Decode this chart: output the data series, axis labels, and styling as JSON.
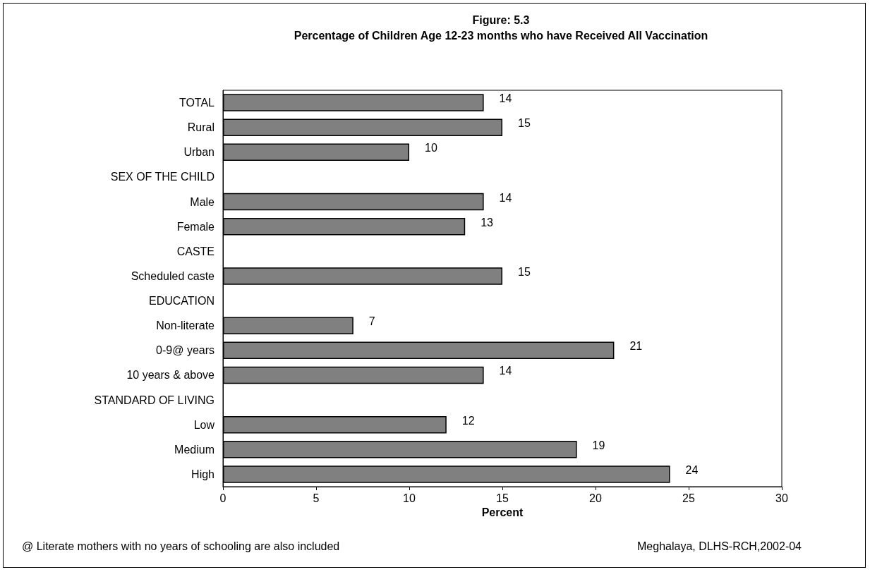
{
  "chart_data": {
    "type": "bar",
    "orientation": "horizontal",
    "title": "Figure: 5.3",
    "subtitle": "Percentage of Children Age 12-23 months who have Received All Vaccination",
    "categories": [
      "TOTAL",
      "Rural",
      "Urban",
      "SEX OF THE CHILD",
      "Male",
      "Female",
      "CASTE",
      "Scheduled caste",
      "EDUCATION",
      "Non-literate",
      "0-9@ years",
      "10 years & above",
      "STANDARD OF LIVING",
      "Low",
      "Medium",
      "High"
    ],
    "values": [
      14,
      15,
      10,
      null,
      14,
      13,
      null,
      15,
      null,
      7,
      21,
      14,
      null,
      12,
      19,
      24
    ],
    "color": "#808080",
    "xlim": [
      0,
      30
    ],
    "xticks": [
      0,
      5,
      10,
      15,
      20,
      25,
      30
    ],
    "xlabel": "Percent",
    "data_labels": true,
    "annotations": [
      "@ Literate mothers with no years of schooling are also included",
      "Meghalaya, DLHS-RCH,2002-04"
    ]
  }
}
